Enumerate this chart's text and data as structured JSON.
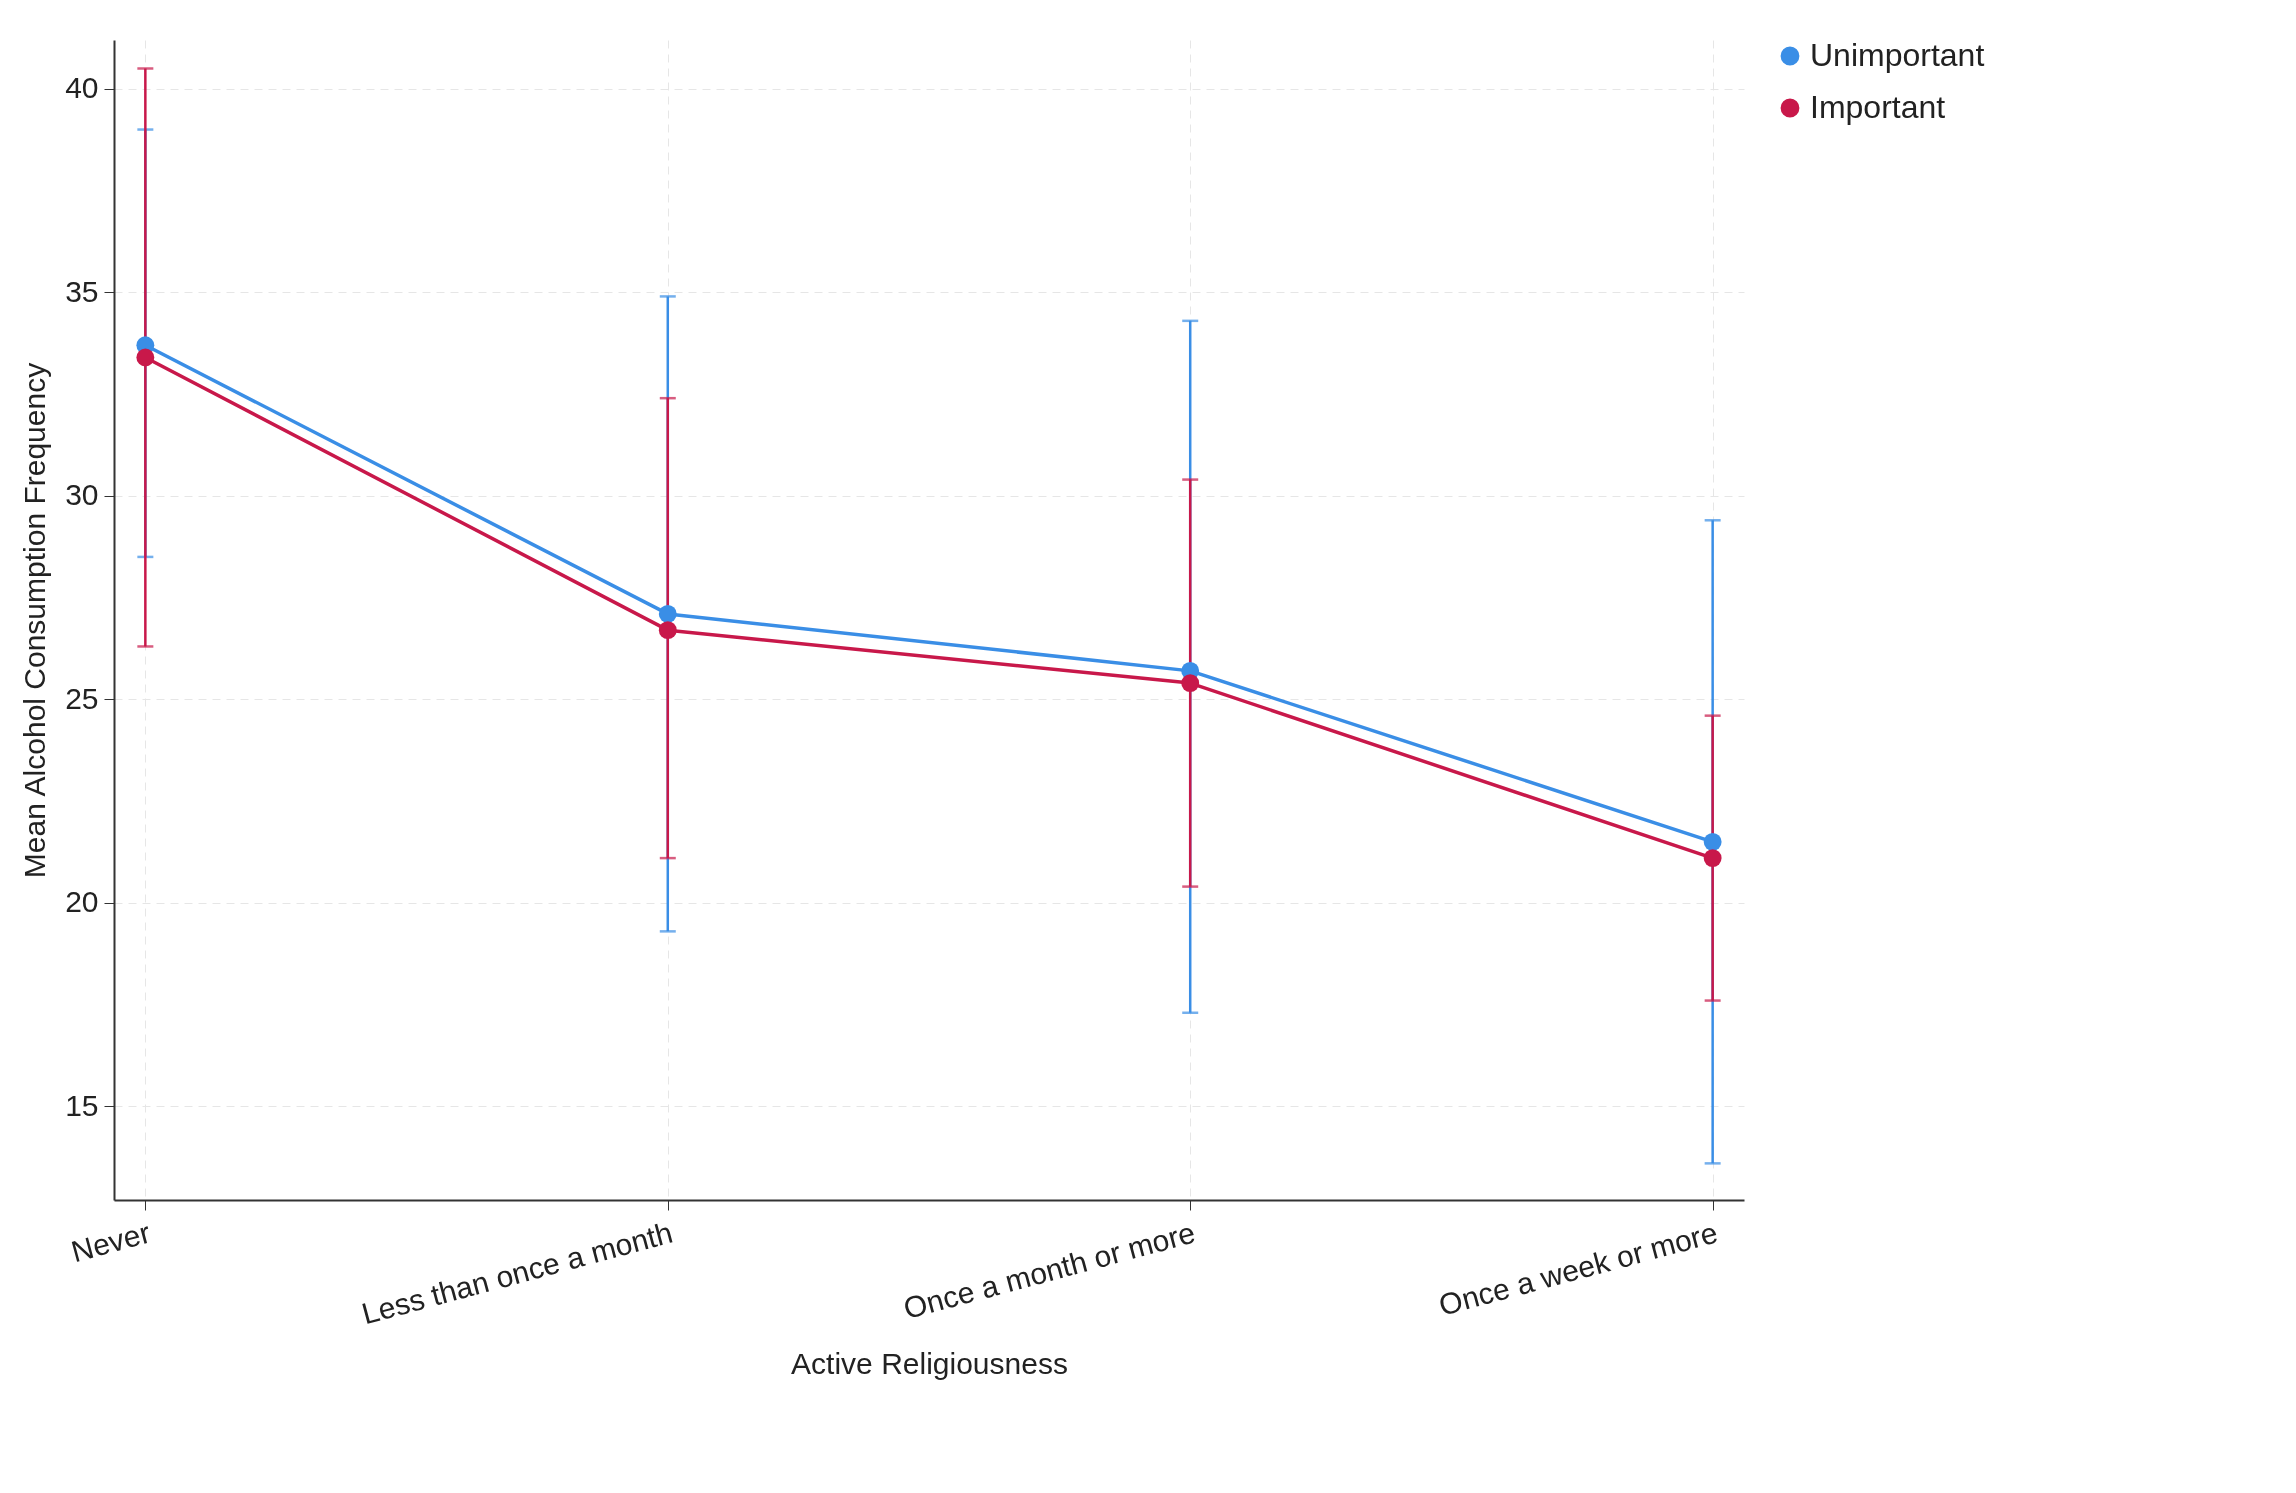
{
  "chart_data": {
    "type": "line",
    "xlabel": "Active Religiousness",
    "ylabel": "Mean Alcohol Consumption Frequency",
    "categories": [
      "Never",
      "Less than once a month",
      "Once a month or more",
      "Once a week or more"
    ],
    "series": [
      {
        "name": "Unimportant",
        "color": "#3a8ee6",
        "values": [
          33.7,
          27.1,
          25.7,
          21.5
        ],
        "errors": [
          [
            28.5,
            39.0
          ],
          [
            19.3,
            34.9
          ],
          [
            17.3,
            34.3
          ],
          [
            13.6,
            29.4
          ]
        ]
      },
      {
        "name": "Important",
        "color": "#c8184a",
        "values": [
          33.4,
          26.7,
          25.4,
          21.1
        ],
        "errors": [
          [
            26.3,
            40.5
          ],
          [
            21.1,
            32.4
          ],
          [
            20.4,
            30.4
          ],
          [
            17.6,
            24.6
          ]
        ]
      }
    ],
    "ylim": [
      12.7,
      41.2
    ],
    "yticks": [
      15,
      20,
      25,
      30,
      35,
      40
    ],
    "grid": true,
    "legend": "right",
    "marker": "circle",
    "line_style": "solid"
  }
}
